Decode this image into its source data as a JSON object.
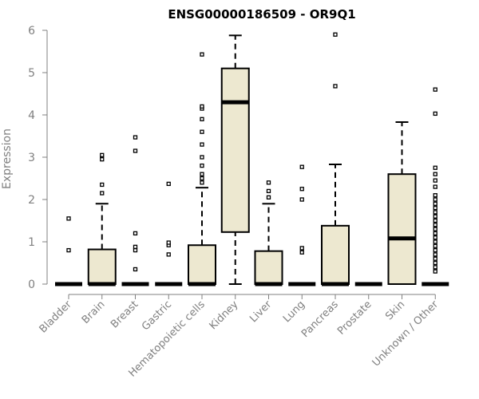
{
  "chart_data": {
    "type": "box",
    "title": "ENSG00000186509 - OR9Q1",
    "ylabel": "Expression",
    "xlabel": "",
    "ylim": [
      0,
      6
    ],
    "yticks": [
      0,
      1,
      2,
      3,
      4,
      5,
      6
    ],
    "grid": false,
    "legend": "none",
    "colors": {
      "box_fill": "#ede8d0",
      "stroke": "#000000",
      "axis": "#808080"
    },
    "categories": [
      "Bladder",
      "Brain",
      "Breast",
      "Gastric",
      "Hematopoietic cells",
      "Kidney",
      "Liver",
      "Lung",
      "Pancreas",
      "Prostate",
      "Skin",
      "Unknown / Other"
    ],
    "boxes": [
      {
        "category": "Bladder",
        "q1": 0,
        "median": 0,
        "q3": 0,
        "whisker_low": 0,
        "whisker_high": 0,
        "outliers": [
          0.8,
          1.55
        ]
      },
      {
        "category": "Brain",
        "q1": 0,
        "median": 0,
        "q3": 0.82,
        "whisker_low": 0,
        "whisker_high": 1.9,
        "outliers": [
          2.15,
          2.35,
          2.95,
          3.05
        ]
      },
      {
        "category": "Breast",
        "q1": 0,
        "median": 0,
        "q3": 0,
        "whisker_low": 0,
        "whisker_high": 0,
        "outliers": [
          0.35,
          0.8,
          0.88,
          1.2,
          3.15,
          3.47
        ]
      },
      {
        "category": "Gastric",
        "q1": 0,
        "median": 0,
        "q3": 0,
        "whisker_low": 0,
        "whisker_high": 0,
        "outliers": [
          0.7,
          0.92,
          0.98,
          2.37
        ]
      },
      {
        "category": "Hematopoietic cells",
        "q1": 0,
        "median": 0,
        "q3": 0.92,
        "whisker_low": 0,
        "whisker_high": 2.28,
        "outliers": [
          2.4,
          2.5,
          2.6,
          2.8,
          3.0,
          3.3,
          3.6,
          3.9,
          4.15,
          4.2,
          5.43
        ]
      },
      {
        "category": "Kidney",
        "q1": 1.23,
        "median": 4.3,
        "q3": 5.1,
        "whisker_low": 0,
        "whisker_high": 5.88,
        "outliers": []
      },
      {
        "category": "Liver",
        "q1": 0,
        "median": 0,
        "q3": 0.78,
        "whisker_low": 0,
        "whisker_high": 1.9,
        "outliers": [
          2.05,
          2.2,
          2.4
        ]
      },
      {
        "category": "Lung",
        "q1": 0,
        "median": 0,
        "q3": 0,
        "whisker_low": 0,
        "whisker_high": 0,
        "outliers": [
          0.75,
          0.85,
          2.0,
          2.25,
          2.77
        ]
      },
      {
        "category": "Pancreas",
        "q1": 0,
        "median": 0,
        "q3": 1.38,
        "whisker_low": 0,
        "whisker_high": 2.83,
        "outliers": [
          4.68,
          5.9
        ]
      },
      {
        "category": "Prostate",
        "q1": 0,
        "median": 0,
        "q3": 0,
        "whisker_low": 0,
        "whisker_high": 0,
        "outliers": []
      },
      {
        "category": "Skin",
        "q1": 0,
        "median": 1.08,
        "q3": 2.6,
        "whisker_low": 0,
        "whisker_high": 3.83,
        "outliers": []
      },
      {
        "category": "Unknown / Other",
        "q1": 0,
        "median": 0,
        "q3": 0,
        "whisker_low": 0,
        "whisker_high": 0,
        "outliers": [
          0.3,
          0.4,
          0.5,
          0.6,
          0.7,
          0.8,
          0.9,
          1.0,
          1.1,
          1.2,
          1.3,
          1.4,
          1.5,
          1.6,
          1.7,
          1.8,
          1.9,
          2.0,
          2.1,
          2.3,
          2.45,
          2.6,
          2.75,
          4.03,
          4.6
        ]
      }
    ]
  }
}
